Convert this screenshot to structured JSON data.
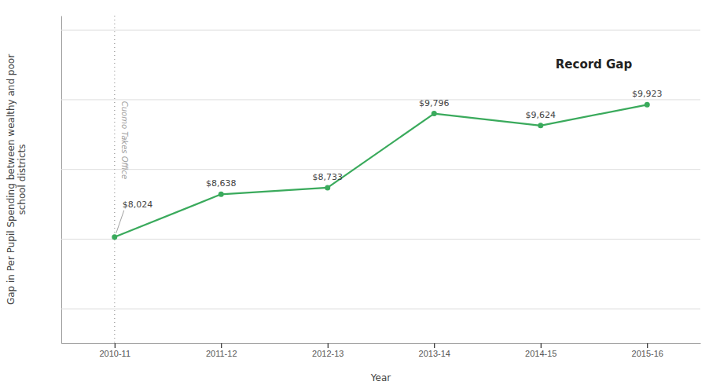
{
  "chart_data": {
    "type": "line",
    "x_label": "Year",
    "y_label": "Gap in Per Pupil Spending between wealthy and poor\nschool districts",
    "categories": [
      "2010-11",
      "2011-12",
      "2012-13",
      "2013-14",
      "2014-15",
      "2015-16"
    ],
    "values": [
      8024,
      8638,
      8733,
      9796,
      9624,
      9923
    ],
    "value_labels": [
      "$8,024",
      "$8,638",
      "$8,733",
      "$9,796",
      "$9,624",
      "$9,923"
    ],
    "data_labels": true,
    "color": "#3aaa5c",
    "marker": "circle",
    "ylim": [
      6500,
      11200
    ],
    "yticks": [
      7000,
      8000,
      9000,
      10000,
      11000
    ],
    "grid": true,
    "tick_labels": "x",
    "annotations": [
      {
        "text": "Cuomo Takes Office",
        "x": "2010-11"
      },
      {
        "text": "Record Gap"
      }
    ]
  }
}
